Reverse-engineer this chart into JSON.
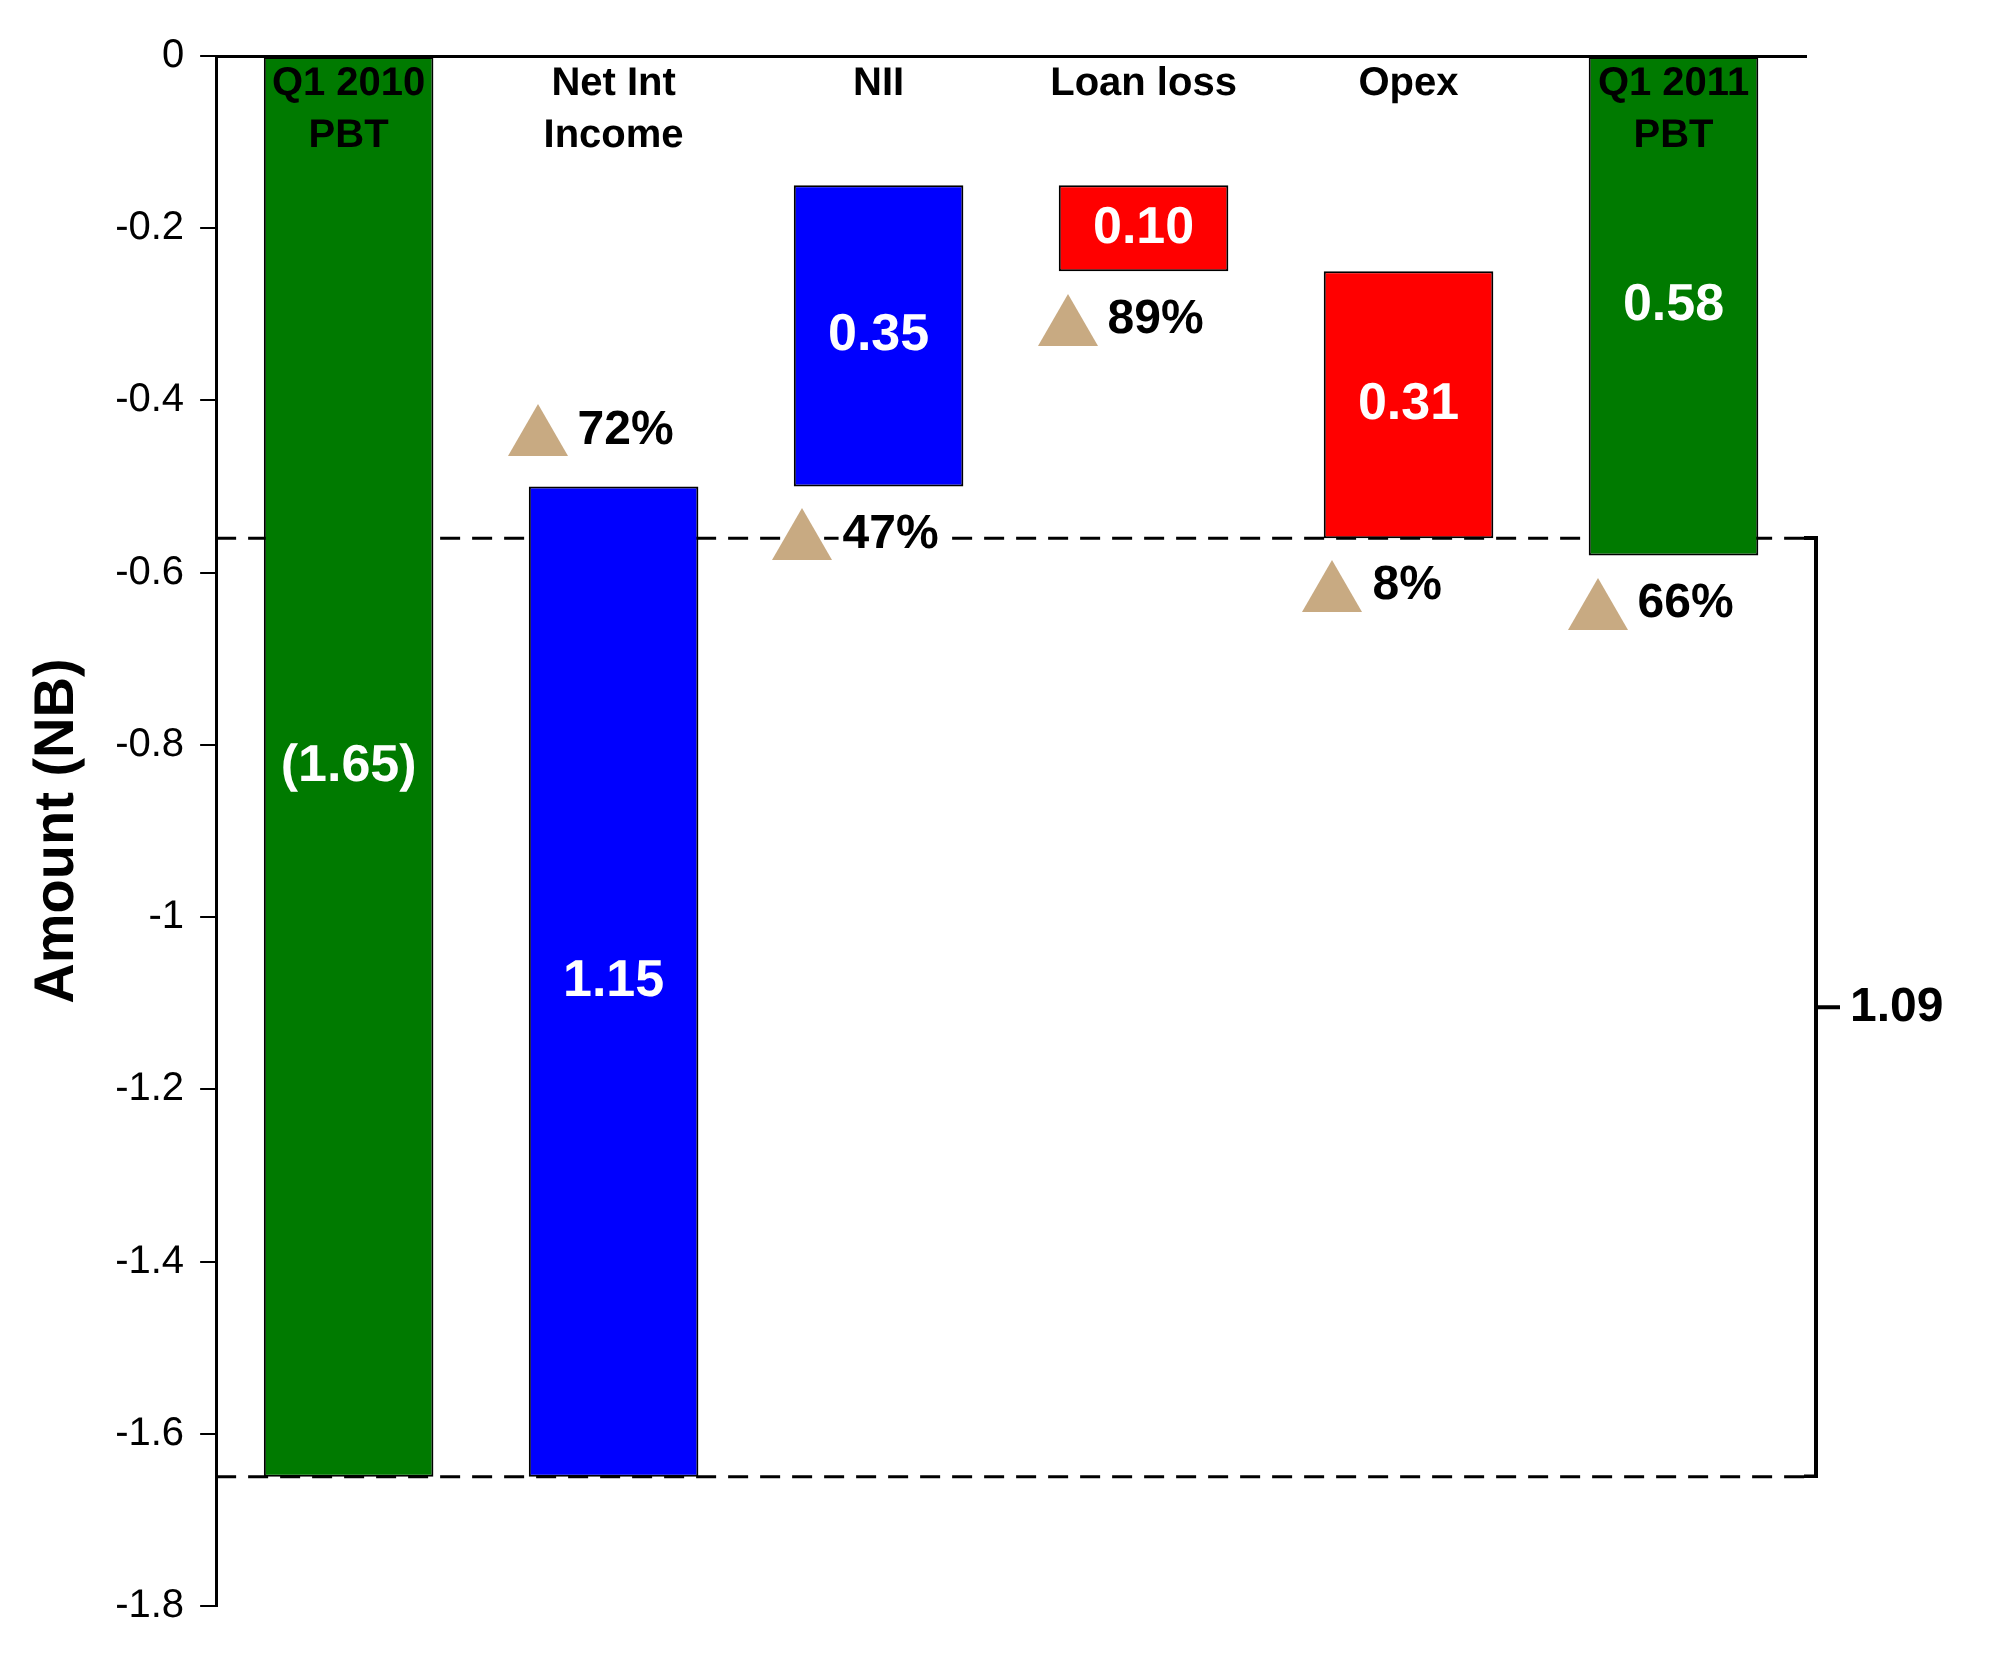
{
  "chart_data": {
    "type": "bar",
    "ylabel": "Amount (NB)",
    "categories": [
      "Q1 2010 PBT",
      "Net Int Income",
      "NII",
      "Loan loss",
      "Opex",
      "Q1 2011 PBT"
    ],
    "base": [
      0,
      -1.65,
      -0.5,
      -0.15,
      -0.25,
      0
    ],
    "values": [
      -1.65,
      1.15,
      0.35,
      -0.1,
      -0.31,
      -0.58
    ],
    "colors": [
      "#007a00",
      "#0000ff",
      "#0000ff",
      "#ff0000",
      "#ff0000",
      "#007a00"
    ],
    "value_labels": [
      "(1.65)",
      "1.15",
      "0.35",
      "0.10",
      "0.31",
      "0.58"
    ],
    "ylim": [
      -1.8,
      0
    ],
    "yticks": [
      0,
      -0.2,
      -0.4,
      -0.6,
      -0.8,
      -1,
      -1.2,
      -1.4,
      -1.6,
      -1.8
    ],
    "grid": false,
    "legend": false,
    "ref_lines": [
      {
        "axis": "y",
        "value": -1.65,
        "color": "#000000",
        "line_style": "dashed"
      },
      {
        "axis": "y",
        "value": -0.56,
        "color": "#000000",
        "line_style": "dashed"
      }
    ],
    "annotations": [
      "72%",
      "47%",
      "89%",
      "8%",
      "66%",
      "1.09"
    ]
  }
}
